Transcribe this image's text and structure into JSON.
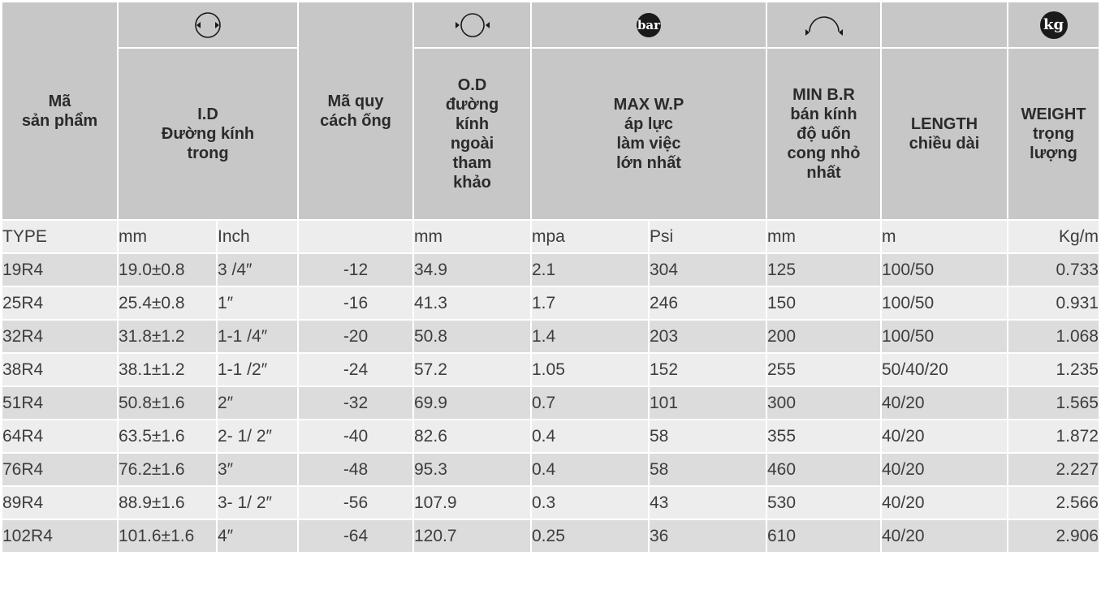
{
  "icons": {
    "id": "inner-diameter-icon",
    "od": "outer-diameter-icon",
    "bar": "bar",
    "br": "bend-radius-icon",
    "kg": "kg"
  },
  "headers": {
    "code": "Mã\nsản phẩm",
    "id": "I.D\nĐường kính\ntrong",
    "spec": "Mã quy\ncách ống",
    "od": "O.D\nđường\nkính\nngoài\ntham\nkhảo",
    "wp": "MAX W.P\náp lực\nlàm việc\nlớn nhất",
    "br": "MIN B.R\nbán kính\nđộ uốn\ncong nhỏ\nnhất",
    "length": "LENGTH\nchiều dài",
    "weight": "WEIGHT\ntrọng\nlượng"
  },
  "units": [
    "TYPE",
    "mm",
    "Inch",
    "",
    "mm",
    "mpa",
    "Psi",
    "mm",
    "m",
    "Kg/m"
  ],
  "rows": [
    [
      "19R4",
      "19.0±0.8",
      "3 /4″",
      "-12",
      "34.9",
      "2.1",
      "304",
      "125",
      "100/50",
      "0.733"
    ],
    [
      "25R4",
      "25.4±0.8",
      "1″",
      "-16",
      "41.3",
      "1.7",
      "246",
      "150",
      "100/50",
      "0.931"
    ],
    [
      "32R4",
      "31.8±1.2",
      "1-1 /4″",
      "-20",
      "50.8",
      "1.4",
      "203",
      "200",
      "100/50",
      "1.068"
    ],
    [
      "38R4",
      "38.1±1.2",
      "1-1 /2″",
      "-24",
      "57.2",
      "1.05",
      "152",
      "255",
      "50/40/20",
      "1.235"
    ],
    [
      "51R4",
      "50.8±1.6",
      "2″",
      "-32",
      "69.9",
      "0.7",
      "101",
      "300",
      "40/20",
      "1.565"
    ],
    [
      "64R4",
      "63.5±1.6",
      "2- 1/ 2″",
      "-40",
      "82.6",
      "0.4",
      "58",
      "355",
      "40/20",
      "1.872"
    ],
    [
      "76R4",
      "76.2±1.6",
      "3″",
      "-48",
      "95.3",
      "0.4",
      "58",
      "460",
      "40/20",
      "2.227"
    ],
    [
      "89R4",
      "88.9±1.6",
      "3- 1/ 2″",
      "-56",
      "107.9",
      "0.3",
      "43",
      "530",
      "40/20",
      "2.566"
    ],
    [
      "102R4",
      "101.6±1.6",
      "4″",
      "-64",
      "120.7",
      "0.25",
      "36",
      "610",
      "40/20",
      "2.906"
    ]
  ]
}
